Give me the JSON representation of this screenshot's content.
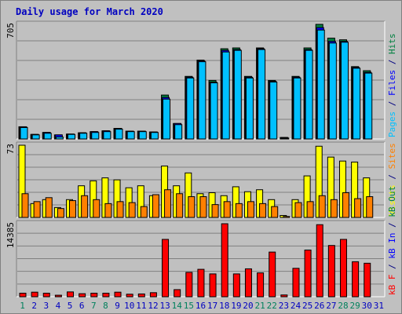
{
  "title": "Daily usage for March 2020",
  "colors": {
    "hits": "#008040",
    "files": "#0000ff",
    "pages": "#00c0ff",
    "visits": "#ffff00",
    "sites": "#ff8000",
    "kbin": "#0000ff",
    "kbout": "#008040",
    "kbf": "#ff0000",
    "weekend_day": "#00805c",
    "weekday": "#0000c0",
    "label_slash": "#000080"
  },
  "chart_data": [
    {
      "type": "bar",
      "panel": "hits-files-pages",
      "ymax_label": "705",
      "ylim": [
        0,
        705
      ],
      "legend": [
        {
          "key": "pages",
          "text": "Pages"
        },
        {
          "key": "files",
          "text": "Files"
        },
        {
          "key": "hits",
          "text": "Hits"
        }
      ],
      "series": [
        {
          "name": "Hits",
          "values": [
            75,
            28,
            40,
            25,
            30,
            38,
            45,
            50,
            65,
            48,
            48,
            43,
            270,
            95,
            385,
            485,
            360,
            555,
            560,
            385,
            560,
            360,
            9,
            385,
            560,
            705,
            620,
            610,
            445,
            420,
            null
          ]
        },
        {
          "name": "Files",
          "values": [
            75,
            28,
            40,
            25,
            30,
            38,
            45,
            50,
            65,
            48,
            48,
            43,
            255,
            95,
            380,
            480,
            350,
            545,
            550,
            380,
            555,
            355,
            9,
            380,
            550,
            685,
            600,
            600,
            440,
            410,
            null
          ]
        },
        {
          "name": "Pages",
          "values": [
            70,
            25,
            35,
            12,
            28,
            35,
            40,
            45,
            60,
            45,
            45,
            40,
            245,
            88,
            375,
            475,
            345,
            535,
            545,
            375,
            550,
            350,
            5,
            375,
            545,
            670,
            590,
            595,
            435,
            405,
            null
          ]
        }
      ]
    },
    {
      "type": "bar",
      "panel": "visits-sites",
      "ymax_label": "73",
      "ylim": [
        0,
        73
      ],
      "legend": [
        {
          "key": "visits",
          "text": "Visits"
        },
        {
          "key": "sites",
          "text": "Sites"
        }
      ],
      "series": [
        {
          "name": "Visits",
          "values": [
            73,
            14,
            18,
            10,
            18,
            32,
            37,
            40,
            38,
            30,
            32,
            22,
            52,
            32,
            45,
            24,
            25,
            22,
            31,
            26,
            28,
            18,
            2,
            18,
            42,
            72,
            61,
            57,
            56,
            40,
            null
          ]
        },
        {
          "name": "Sites",
          "values": [
            24,
            16,
            20,
            9,
            17,
            22,
            18,
            14,
            16,
            15,
            11,
            23,
            28,
            24,
            21,
            21,
            13,
            16,
            14,
            16,
            14,
            11,
            1,
            15,
            16,
            22,
            18,
            25,
            19,
            21,
            null
          ]
        }
      ]
    },
    {
      "type": "bar",
      "panel": "kbytes",
      "ymax_label": "14385",
      "ylim": [
        0,
        14385
      ],
      "legend": [
        {
          "key": "kbf",
          "text": "kB F"
        },
        {
          "key": "kbin",
          "text": "kB In"
        },
        {
          "key": "kbout",
          "text": "kB Out"
        }
      ],
      "series": [
        {
          "name": "kB F",
          "values": [
            700,
            900,
            700,
            300,
            950,
            600,
            700,
            700,
            900,
            500,
            550,
            800,
            11300,
            1400,
            4800,
            5400,
            4500,
            14385,
            4500,
            5500,
            4700,
            8800,
            350,
            5600,
            9200,
            14200,
            10100,
            11300,
            6900,
            6600,
            null
          ]
        }
      ]
    }
  ],
  "x_labels": [
    "1",
    "2",
    "3",
    "4",
    "5",
    "6",
    "7",
    "8",
    "9",
    "10",
    "11",
    "12",
    "13",
    "14",
    "15",
    "16",
    "17",
    "18",
    "19",
    "20",
    "21",
    "22",
    "23",
    "24",
    "25",
    "26",
    "27",
    "28",
    "29",
    "30",
    "31"
  ],
  "weekend_days": [
    "1",
    "7",
    "8",
    "14",
    "15",
    "21",
    "22",
    "28",
    "29"
  ]
}
